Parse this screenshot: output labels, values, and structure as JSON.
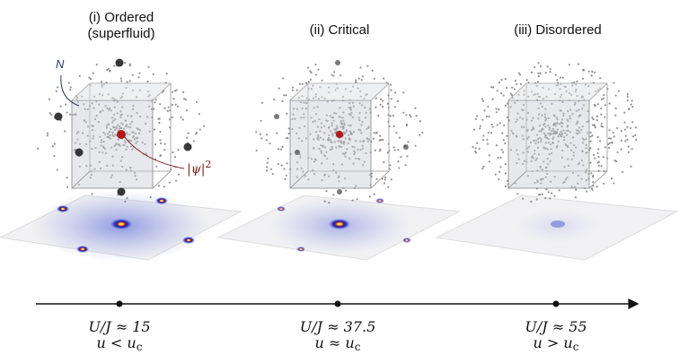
{
  "panels": [
    {
      "title": "(i) Ordered",
      "subtitle": "(superfluid)",
      "ratio": "U/J ≈ 15",
      "relation": "u < u",
      "subscript": "c"
    },
    {
      "title": "(ii) Critical",
      "ratio": "U/J ≈ 37.5",
      "relation": "u ≈ u",
      "subscript": "c"
    },
    {
      "title": "(iii) Disordered",
      "ratio": "U/J ≈ 55",
      "relation": "u > u",
      "subscript": "c"
    }
  ],
  "annotations": {
    "n": "N",
    "psi": "|ψ|",
    "psi_power": "2"
  }
}
